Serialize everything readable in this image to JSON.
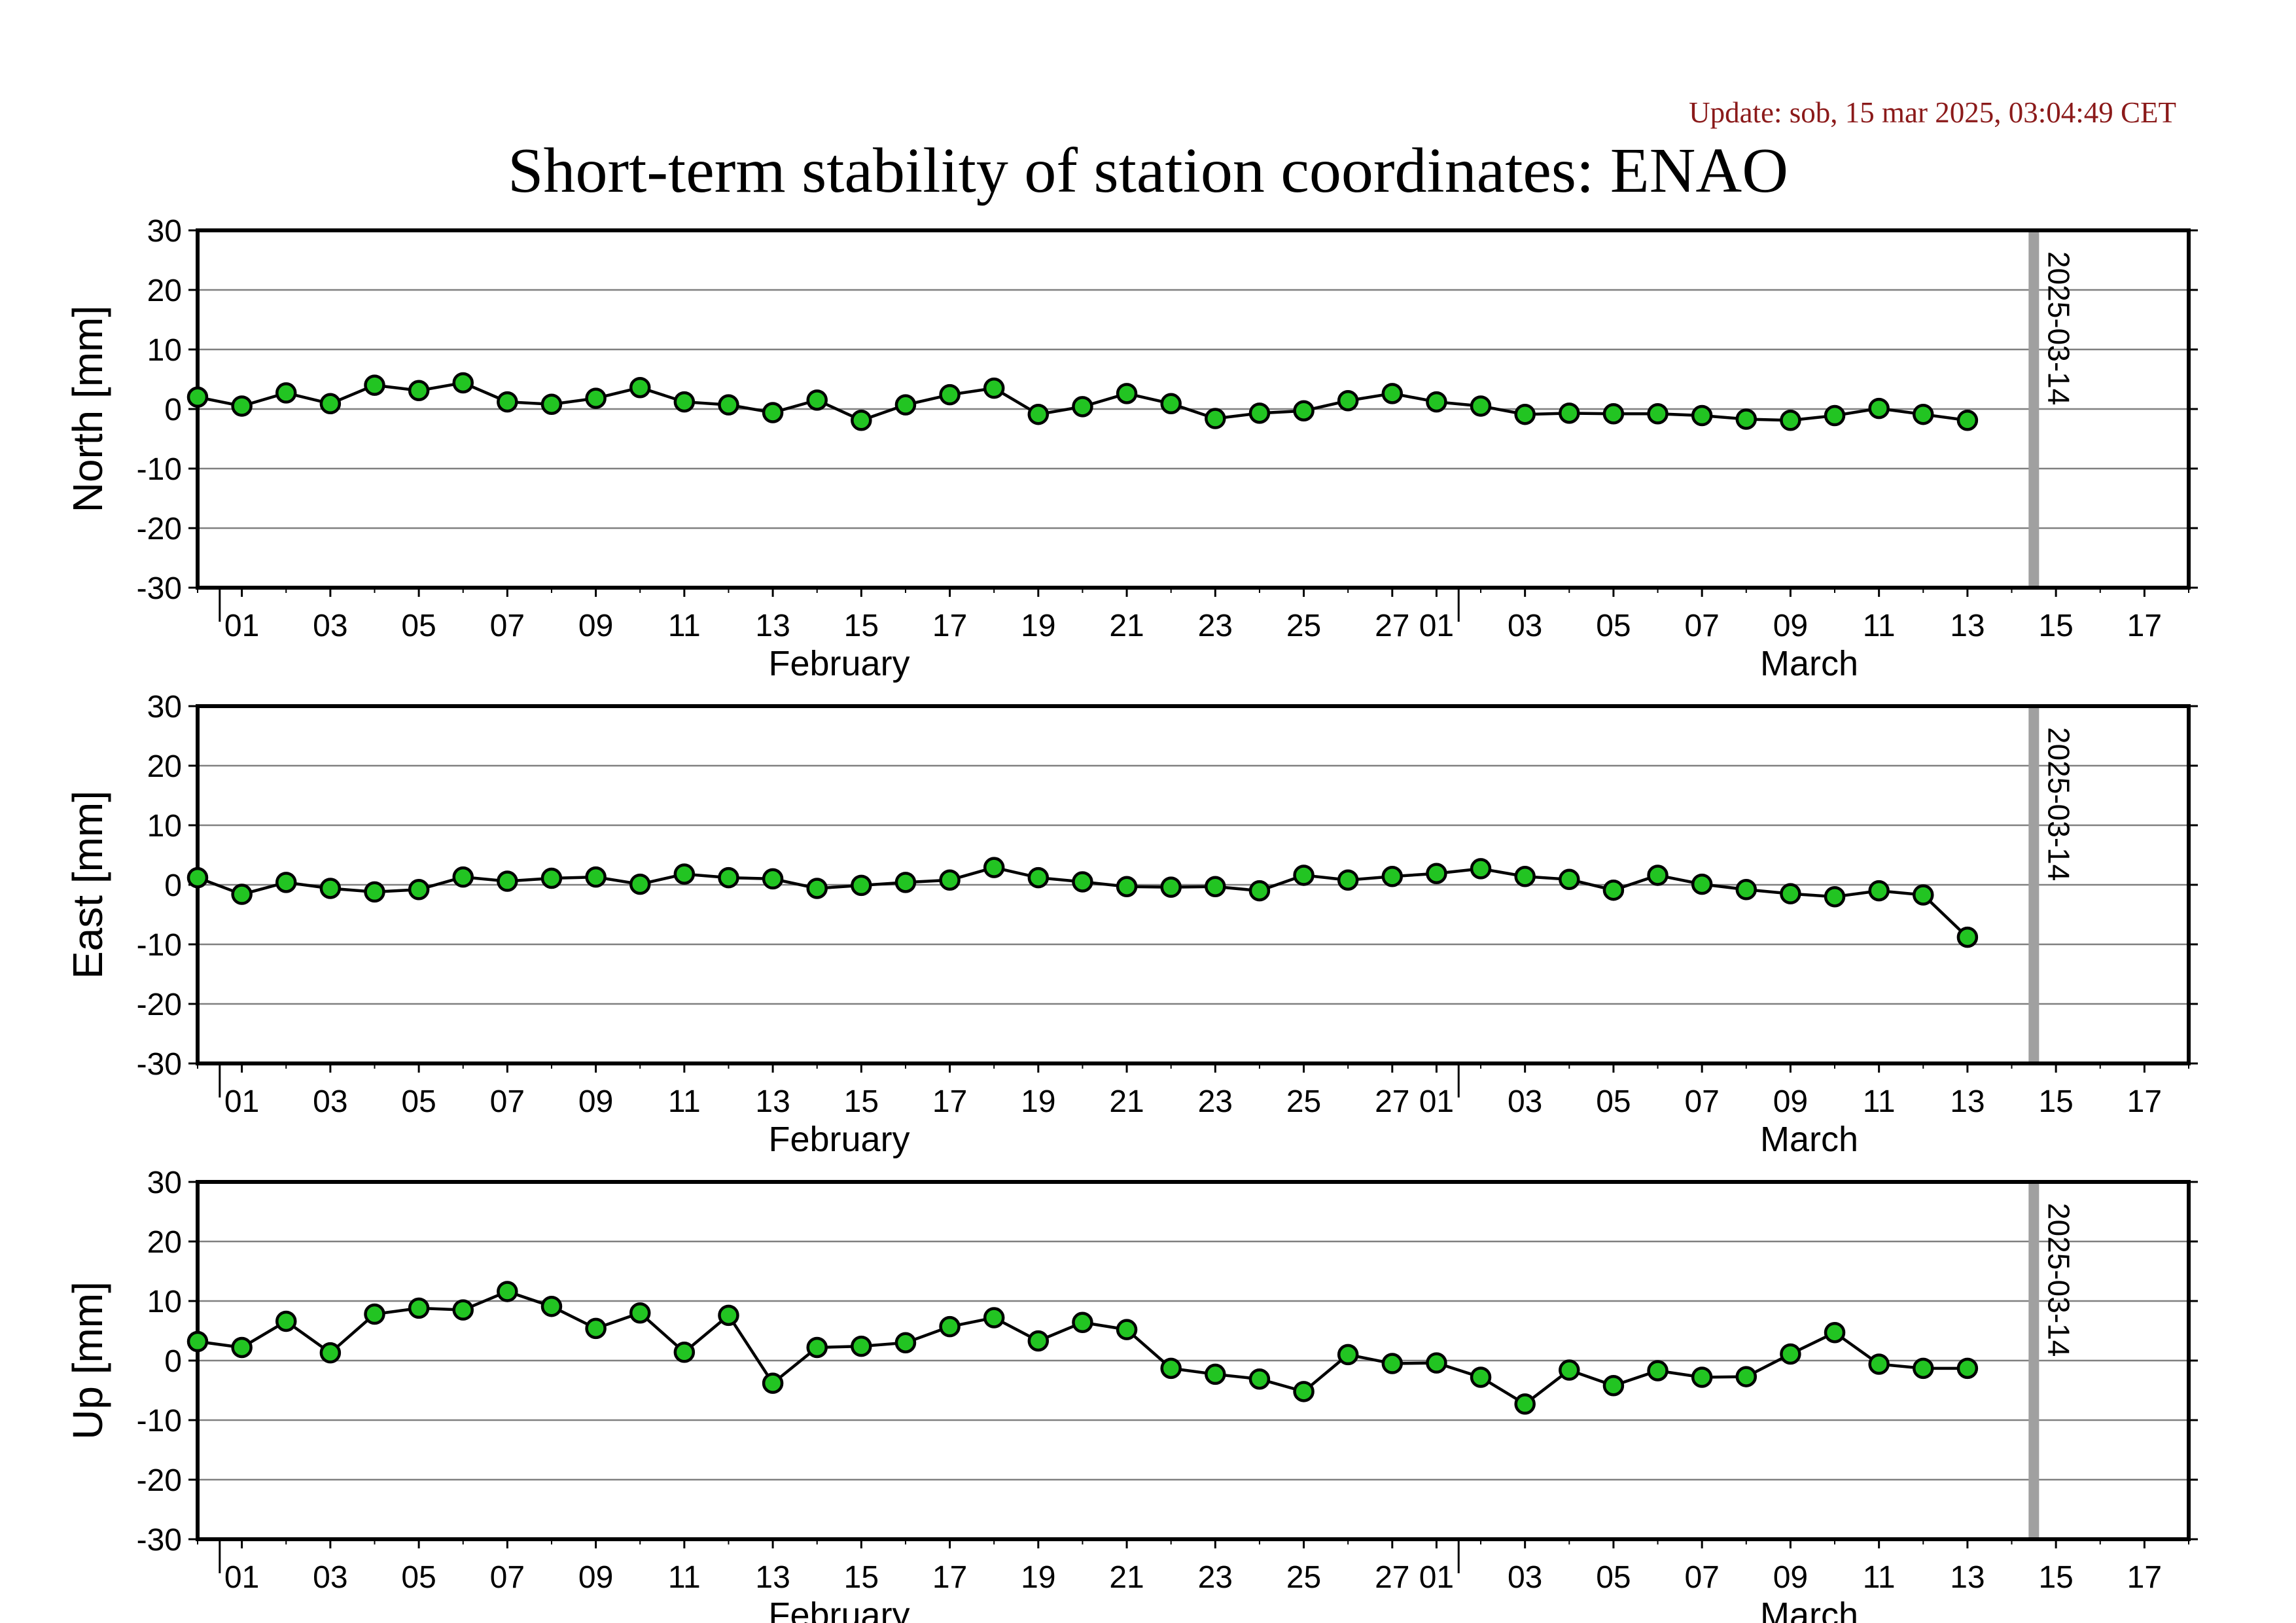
{
  "header": {
    "update_text": "Update: sob, 15 mar 2025, 03:04:49 CET",
    "title": "Short-term stability of station coordinates: ENAO"
  },
  "colors": {
    "point_fill": "#22c422",
    "point_stroke": "#000000",
    "line": "#000000",
    "grid": "#808080",
    "marker_line": "#a0a0a0",
    "update_text": "#8b1a1a"
  },
  "chart_data": [
    {
      "type": "line",
      "ylabel": "North [mm]",
      "ylim": [
        -30,
        30
      ],
      "yticks": [
        30,
        20,
        10,
        0,
        -10,
        -20,
        -30
      ],
      "xlim": [
        "2025-01-31",
        "2025-03-17"
      ],
      "x_tick_labels": [
        "01",
        "03",
        "05",
        "07",
        "09",
        "11",
        "13",
        "15",
        "17",
        "19",
        "21",
        "23",
        "25",
        "27",
        "01",
        "03",
        "05",
        "07",
        "09",
        "11",
        "13",
        "15",
        "17"
      ],
      "months": [
        "February",
        "March"
      ],
      "marker_date": "2025-03-14",
      "marker_label": "2025-03-14",
      "grid": true,
      "x": [
        "2025-01-31",
        "2025-02-01",
        "2025-02-02",
        "2025-02-03",
        "2025-02-04",
        "2025-02-05",
        "2025-02-06",
        "2025-02-07",
        "2025-02-08",
        "2025-02-09",
        "2025-02-10",
        "2025-02-11",
        "2025-02-12",
        "2025-02-13",
        "2025-02-14",
        "2025-02-15",
        "2025-02-16",
        "2025-02-17",
        "2025-02-18",
        "2025-02-19",
        "2025-02-20",
        "2025-02-21",
        "2025-02-22",
        "2025-02-23",
        "2025-02-24",
        "2025-02-25",
        "2025-02-26",
        "2025-02-27",
        "2025-02-28",
        "2025-03-01",
        "2025-03-02",
        "2025-03-03",
        "2025-03-04",
        "2025-03-05",
        "2025-03-06",
        "2025-03-07",
        "2025-03-08",
        "2025-03-09",
        "2025-03-10",
        "2025-03-11",
        "2025-03-12"
      ],
      "values": [
        2.0,
        0.5,
        2.7,
        0.9,
        4.0,
        3.1,
        4.4,
        1.2,
        0.8,
        1.8,
        3.6,
        1.2,
        0.7,
        -0.6,
        1.5,
        -1.9,
        0.7,
        2.4,
        3.5,
        -0.9,
        0.4,
        2.6,
        0.9,
        -1.6,
        -0.7,
        -0.3,
        1.4,
        2.6,
        1.2,
        0.5,
        -0.9,
        -0.7,
        -0.8,
        -0.8,
        -1.1,
        -1.7,
        -1.9,
        -1.1,
        0.1,
        -0.9,
        -1.9
      ]
    },
    {
      "type": "line",
      "ylabel": "East [mm]",
      "ylim": [
        -30,
        30
      ],
      "yticks": [
        30,
        20,
        10,
        0,
        -10,
        -20,
        -30
      ],
      "xlim": [
        "2025-01-31",
        "2025-03-17"
      ],
      "x_tick_labels": [
        "01",
        "03",
        "05",
        "07",
        "09",
        "11",
        "13",
        "15",
        "17",
        "19",
        "21",
        "23",
        "25",
        "27",
        "01",
        "03",
        "05",
        "07",
        "09",
        "11",
        "13",
        "15",
        "17"
      ],
      "months": [
        "February",
        "March"
      ],
      "marker_date": "2025-03-14",
      "marker_label": "2025-03-14",
      "grid": true,
      "x": [
        "2025-01-31",
        "2025-02-01",
        "2025-02-02",
        "2025-02-03",
        "2025-02-04",
        "2025-02-05",
        "2025-02-06",
        "2025-02-07",
        "2025-02-08",
        "2025-02-09",
        "2025-02-10",
        "2025-02-11",
        "2025-02-12",
        "2025-02-13",
        "2025-02-14",
        "2025-02-15",
        "2025-02-16",
        "2025-02-17",
        "2025-02-18",
        "2025-02-19",
        "2025-02-20",
        "2025-02-21",
        "2025-02-22",
        "2025-02-23",
        "2025-02-24",
        "2025-02-25",
        "2025-02-26",
        "2025-02-27",
        "2025-02-28",
        "2025-03-01",
        "2025-03-02",
        "2025-03-03",
        "2025-03-04",
        "2025-03-05",
        "2025-03-06",
        "2025-03-07",
        "2025-03-08",
        "2025-03-09",
        "2025-03-10",
        "2025-03-11",
        "2025-03-12"
      ],
      "values": [
        1.2,
        -1.6,
        0.4,
        -0.6,
        -1.2,
        -0.8,
        1.3,
        0.6,
        1.1,
        1.3,
        0.1,
        1.8,
        1.2,
        1.0,
        -0.6,
        -0.1,
        0.4,
        0.8,
        2.9,
        1.2,
        0.5,
        -0.3,
        -0.4,
        -0.3,
        -1.0,
        1.6,
        0.8,
        1.4,
        1.9,
        2.7,
        1.4,
        0.9,
        -0.9,
        1.6,
        0.1,
        -0.8,
        -1.5,
        -2.0,
        -1.0,
        -1.7,
        -8.8
      ]
    },
    {
      "type": "line",
      "ylabel": "Up [mm]",
      "ylim": [
        -30,
        30
      ],
      "yticks": [
        30,
        20,
        10,
        0,
        -10,
        -20,
        -30
      ],
      "xlim": [
        "2025-01-31",
        "2025-03-17"
      ],
      "x_tick_labels": [
        "01",
        "03",
        "05",
        "07",
        "09",
        "11",
        "13",
        "15",
        "17",
        "19",
        "21",
        "23",
        "25",
        "27",
        "01",
        "03",
        "05",
        "07",
        "09",
        "11",
        "13",
        "15",
        "17"
      ],
      "months": [
        "February",
        "March"
      ],
      "marker_date": "2025-03-14",
      "marker_label": "2025-03-14",
      "grid": true,
      "x": [
        "2025-01-31",
        "2025-02-01",
        "2025-02-02",
        "2025-02-03",
        "2025-02-04",
        "2025-02-05",
        "2025-02-06",
        "2025-02-07",
        "2025-02-08",
        "2025-02-09",
        "2025-02-10",
        "2025-02-11",
        "2025-02-12",
        "2025-02-13",
        "2025-02-14",
        "2025-02-15",
        "2025-02-16",
        "2025-02-17",
        "2025-02-18",
        "2025-02-19",
        "2025-02-20",
        "2025-02-21",
        "2025-02-22",
        "2025-02-23",
        "2025-02-24",
        "2025-02-25",
        "2025-02-26",
        "2025-02-27",
        "2025-02-28",
        "2025-03-01",
        "2025-03-02",
        "2025-03-03",
        "2025-03-04",
        "2025-03-05",
        "2025-03-06",
        "2025-03-07",
        "2025-03-08",
        "2025-03-09",
        "2025-03-10",
        "2025-03-11",
        "2025-03-12"
      ],
      "values": [
        3.2,
        2.2,
        6.6,
        1.3,
        7.8,
        8.8,
        8.5,
        11.6,
        9.1,
        5.4,
        8.0,
        1.4,
        7.6,
        -3.8,
        2.2,
        2.4,
        3.0,
        5.7,
        7.2,
        3.3,
        6.4,
        5.2,
        -1.3,
        -2.3,
        -3.1,
        -5.2,
        1.0,
        -0.5,
        -0.4,
        -2.8,
        -7.3,
        -1.6,
        -4.2,
        -1.7,
        -2.8,
        -2.7,
        1.1,
        4.7,
        -0.6,
        -1.3,
        -1.3
      ]
    }
  ]
}
